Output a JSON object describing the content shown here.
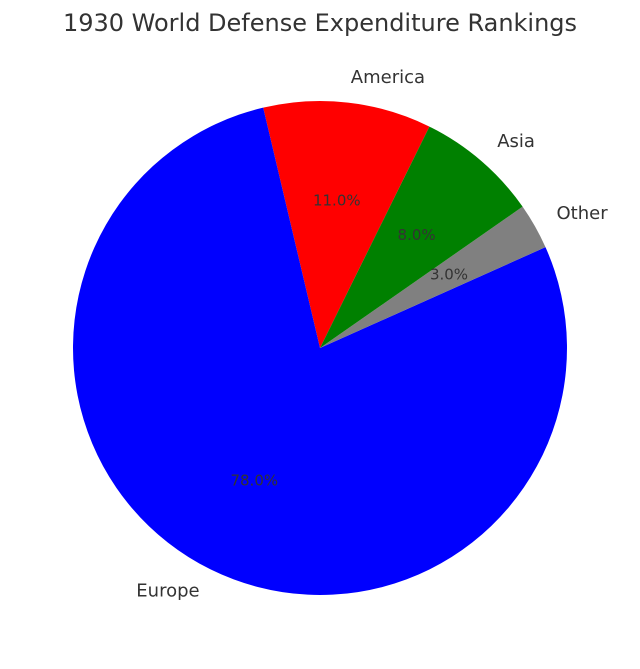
{
  "chart_data": {
    "type": "pie",
    "title": "1930 World Defense Expenditure Rankings",
    "slices": [
      {
        "label": "America",
        "value": 11.0,
        "pct_label": "11.0%",
        "color": "#ff0000"
      },
      {
        "label": "Europe",
        "value": 78.0,
        "pct_label": "78.0%",
        "color": "#0000ff"
      },
      {
        "label": "Other",
        "value": 3.0,
        "pct_label": "3.0%",
        "color": "#808080"
      },
      {
        "label": "Asia",
        "value": 8.0,
        "pct_label": "8.0%",
        "color": "#008000"
      }
    ]
  }
}
